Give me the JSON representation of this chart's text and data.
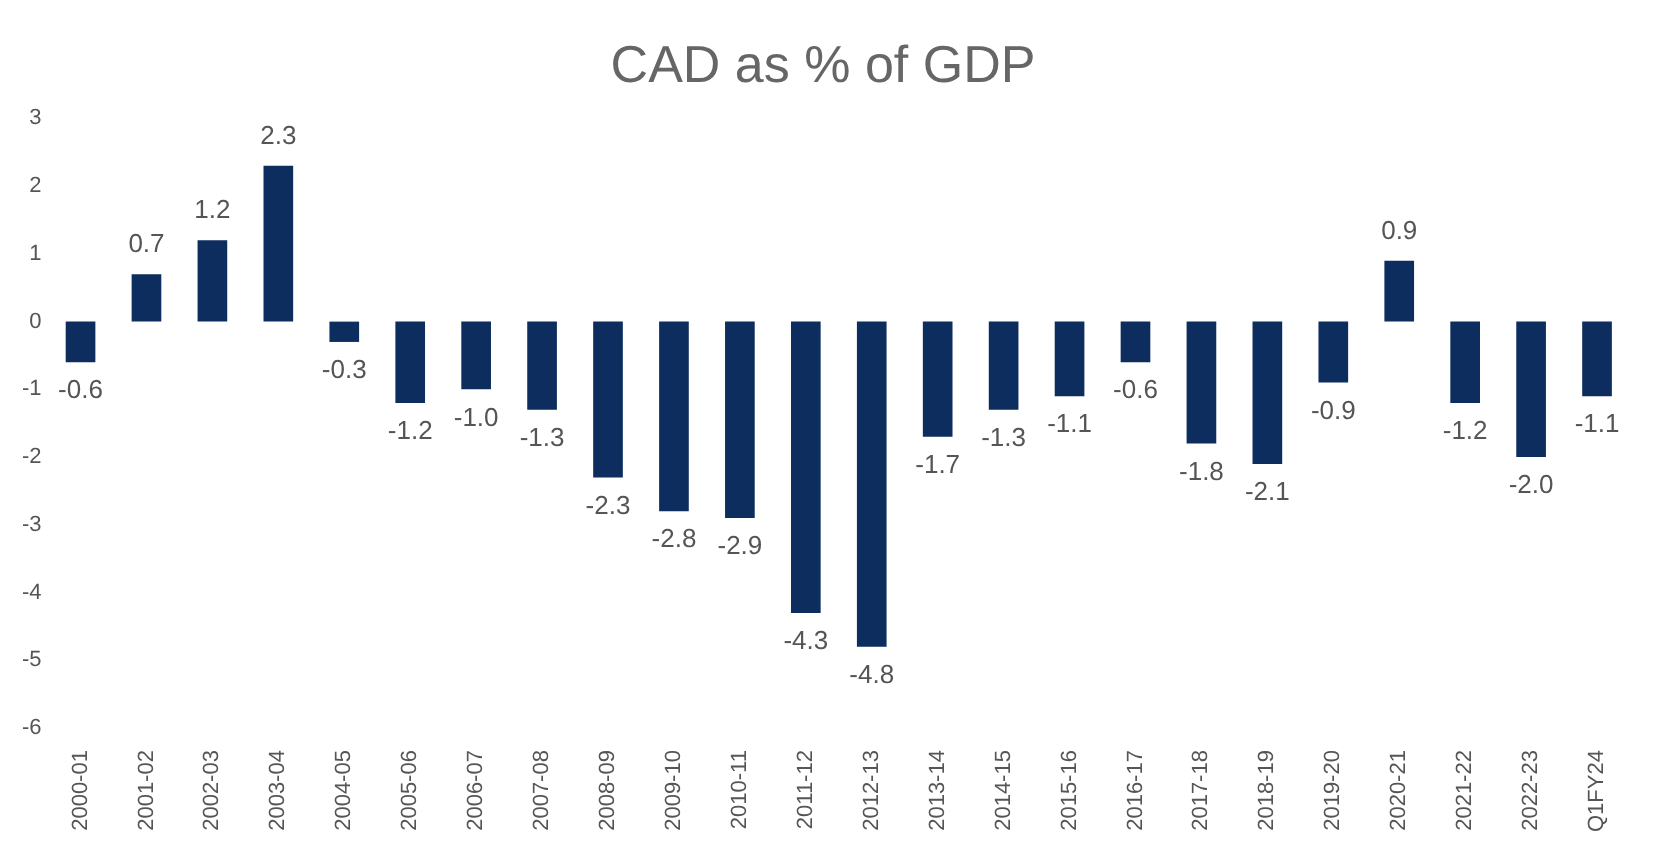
{
  "chart_data": {
    "type": "bar",
    "title": "CAD as % of GDP",
    "categories": [
      "2000-01",
      "2001-02",
      "2002-03",
      "2003-04",
      "2004-05",
      "2005-06",
      "2006-07",
      "2007-08",
      "2008-09",
      "2009-10",
      "2010-11",
      "2011-12",
      "2012-13",
      "2013-14",
      "2014-15",
      "2015-16",
      "2016-17",
      "2017-18",
      "2018-19",
      "2019-20",
      "2020-21",
      "2021-22",
      "2022-23",
      "Q1FY24"
    ],
    "values": [
      -0.6,
      0.7,
      1.2,
      2.3,
      -0.3,
      -1.2,
      -1.0,
      -1.3,
      -2.3,
      -2.8,
      -2.9,
      -4.3,
      -4.8,
      -1.7,
      -1.3,
      -1.1,
      -0.6,
      -1.8,
      -2.1,
      -0.9,
      0.9,
      -1.2,
      -2.0,
      -1.1
    ],
    "value_labels": [
      "-0.6",
      "0.7",
      "1.2",
      "2.3",
      "-0.3",
      "-1.2",
      "-1.0",
      "-1.3",
      "-2.3",
      "-2.8",
      "-2.9",
      "-4.3",
      "-4.8",
      "-1.7",
      "-1.3",
      "-1.1",
      "-0.6",
      "-1.8",
      "-2.1",
      "-0.9",
      "0.9",
      "-1.2",
      "-2.0",
      "-1.1"
    ],
    "color": "#0d2d5e",
    "ylim": [
      -6,
      3
    ],
    "yticks": [
      -6,
      -5,
      -4,
      -3,
      -2,
      -1,
      0,
      1,
      2,
      3
    ],
    "grid": false
  }
}
